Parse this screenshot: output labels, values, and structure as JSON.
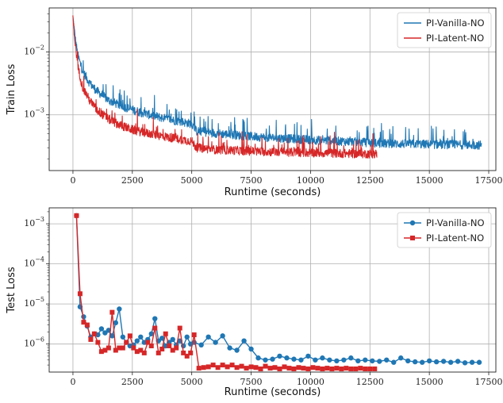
{
  "chart_data": [
    {
      "type": "line",
      "panel": "top",
      "xlabel": "Runtime (seconds)",
      "ylabel": "Train Loss",
      "xlim": [
        -1000,
        17800
      ],
      "ylim": [
        0.00013,
        0.05
      ],
      "yscale": "log",
      "xticks": [
        0,
        2500,
        5000,
        7500,
        10000,
        12500,
        15000,
        17500
      ],
      "xtick_labels": [
        "0",
        "2500",
        "5000",
        "7500",
        "10000",
        "12500",
        "15000",
        "17500"
      ],
      "yticks": [
        0.001,
        0.01
      ],
      "ytick_labels": [
        "10^-3",
        "10^-2"
      ],
      "grid": true,
      "legend_position": "top-right",
      "series": [
        {
          "name": "PI-Vanilla-NO",
          "color": "#1f77b4",
          "x": [
            0,
            100,
            200,
            400,
            700,
            1000,
            1500,
            2000,
            2500,
            3000,
            4000,
            5000,
            5200,
            6000,
            7000,
            8000,
            9000,
            10000,
            12000,
            13000,
            15000,
            17200
          ],
          "values": [
            0.035,
            0.016,
            0.009,
            0.005,
            0.0032,
            0.0024,
            0.0017,
            0.0014,
            0.0012,
            0.00105,
            0.00085,
            0.00072,
            0.00055,
            0.00051,
            0.00047,
            0.00044,
            0.00042,
            0.0004,
            0.00037,
            0.00035,
            0.00034,
            0.00033
          ]
        },
        {
          "name": "PI-Latent-NO",
          "color": "#d62728",
          "x": [
            0,
            100,
            200,
            400,
            700,
            1000,
            1500,
            2000,
            2500,
            3000,
            4000,
            5000,
            5200,
            6000,
            7000,
            8000,
            9000,
            10000,
            11000,
            12000,
            12800
          ],
          "values": [
            0.035,
            0.013,
            0.006,
            0.0028,
            0.0017,
            0.0012,
            0.00085,
            0.00068,
            0.00058,
            0.00052,
            0.00044,
            0.00038,
            0.0003,
            0.00028,
            0.00027,
            0.00026,
            0.000255,
            0.00025,
            0.000245,
            0.00024,
            0.00024
          ]
        }
      ]
    },
    {
      "type": "line",
      "panel": "bottom",
      "xlabel": "Runtime (seconds)",
      "ylabel": "Test Loss",
      "xlim": [
        -1000,
        17800
      ],
      "ylim": [
        2e-07,
        0.0025
      ],
      "yscale": "log",
      "xticks": [
        0,
        2500,
        5000,
        7500,
        10000,
        12500,
        15000,
        17500
      ],
      "xtick_labels": [
        "0",
        "2500",
        "5000",
        "7500",
        "10000",
        "12500",
        "15000",
        "17500"
      ],
      "yticks": [
        1e-06,
        1e-05,
        0.0001,
        0.001
      ],
      "ytick_labels": [
        "10^-6",
        "10^-5",
        "10^-4",
        "10^-3"
      ],
      "grid": true,
      "legend_position": "top-right",
      "series": [
        {
          "name": "PI-Vanilla-NO",
          "color": "#1f77b4",
          "marker": "circle",
          "x": [
            150,
            300,
            450,
            600,
            750,
            900,
            1050,
            1200,
            1350,
            1500,
            1650,
            1800,
            1950,
            2100,
            2250,
            2400,
            2550,
            2700,
            2850,
            3000,
            3150,
            3300,
            3450,
            3600,
            3750,
            3900,
            4050,
            4200,
            4350,
            4500,
            4650,
            4800,
            4950,
            5100,
            5400,
            5700,
            6000,
            6300,
            6600,
            6900,
            7200,
            7500,
            7800,
            8100,
            8400,
            8700,
            9000,
            9300,
            9600,
            9900,
            10200,
            10500,
            10800,
            11100,
            11400,
            11700,
            12000,
            12300,
            12600,
            12900,
            13200,
            13500,
            13800,
            14100,
            14400,
            14700,
            15000,
            15300,
            15600,
            15900,
            16200,
            16500,
            16800,
            17100
          ],
          "values": [
            0.0016,
            8.5e-06,
            4.8e-06,
            2.8e-06,
            1.5e-06,
            1.8e-06,
            1.7e-06,
            2.4e-06,
            1.9e-06,
            2.2e-06,
            1.6e-06,
            3.4e-06,
            7.5e-06,
            1.5e-06,
            1.1e-06,
            9e-07,
            9.5e-07,
            1.2e-06,
            1.5e-06,
            1.1e-06,
            1.3e-06,
            1.8e-06,
            4.3e-06,
            1.2e-06,
            1.4e-06,
            9e-07,
            1.1e-06,
            1.3e-06,
            9.5e-07,
            1.2e-06,
            9e-07,
            1.5e-06,
            1e-06,
            1.1e-06,
            9.5e-07,
            1.5e-06,
            1.1e-06,
            1.6e-06,
            8e-07,
            7e-07,
            1.2e-06,
            7.5e-07,
            4.5e-07,
            4e-07,
            4.2e-07,
            5e-07,
            4.5e-07,
            4.2e-07,
            4e-07,
            5e-07,
            4e-07,
            4.5e-07,
            4e-07,
            3.8e-07,
            4e-07,
            4.5e-07,
            3.8e-07,
            4e-07,
            3.8e-07,
            3.7e-07,
            4e-07,
            3.5e-07,
            4.5e-07,
            3.8e-07,
            3.6e-07,
            3.5e-07,
            3.8e-07,
            3.6e-07,
            3.7e-07,
            3.5e-07,
            3.7e-07,
            3.4e-07,
            3.5e-07,
            3.5e-07
          ]
        },
        {
          "name": "PI-Latent-NO",
          "color": "#d62728",
          "marker": "square",
          "x": [
            150,
            300,
            450,
            600,
            750,
            900,
            1050,
            1200,
            1350,
            1500,
            1650,
            1800,
            1950,
            2100,
            2250,
            2400,
            2550,
            2700,
            2850,
            3000,
            3150,
            3300,
            3450,
            3600,
            3750,
            3900,
            4050,
            4200,
            4350,
            4500,
            4650,
            4800,
            4950,
            5100,
            5300,
            5500,
            5700,
            5900,
            6100,
            6300,
            6500,
            6700,
            6900,
            7100,
            7300,
            7500,
            7700,
            7900,
            8100,
            8300,
            8500,
            8700,
            8900,
            9100,
            9300,
            9500,
            9700,
            9900,
            10100,
            10300,
            10500,
            10700,
            10900,
            11100,
            11300,
            11500,
            11700,
            11900,
            12100,
            12300,
            12500,
            12700
          ],
          "values": [
            0.0016,
            1.8e-05,
            3.5e-06,
            3e-06,
            1.3e-06,
            1.8e-06,
            1.1e-06,
            6.5e-07,
            7e-07,
            8e-07,
            6.2e-06,
            7e-07,
            8e-07,
            8e-07,
            1.1e-06,
            1.6e-06,
            8e-07,
            6.5e-07,
            7e-07,
            6e-07,
            1.1e-06,
            9e-07,
            2.5e-06,
            6e-07,
            7.5e-07,
            1.8e-06,
            9e-07,
            7e-07,
            8e-07,
            2.5e-06,
            6e-07,
            5e-07,
            6e-07,
            1.7e-06,
            2.5e-07,
            2.6e-07,
            2.7e-07,
            3e-07,
            2.6e-07,
            3e-07,
            2.7e-07,
            3e-07,
            2.6e-07,
            2.8e-07,
            2.5e-07,
            2.7e-07,
            2.6e-07,
            2.4e-07,
            2.8e-07,
            2.5e-07,
            2.6e-07,
            2.4e-07,
            2.7e-07,
            2.5e-07,
            2.4e-07,
            2.6e-07,
            2.5e-07,
            2.4e-07,
            2.6e-07,
            2.5e-07,
            2.4e-07,
            2.5e-07,
            2.4e-07,
            2.5e-07,
            2.4e-07,
            2.5e-07,
            2.4e-07,
            2.4e-07,
            2.5e-07,
            2.4e-07,
            2.4e-07,
            2.4e-07
          ]
        }
      ]
    }
  ]
}
